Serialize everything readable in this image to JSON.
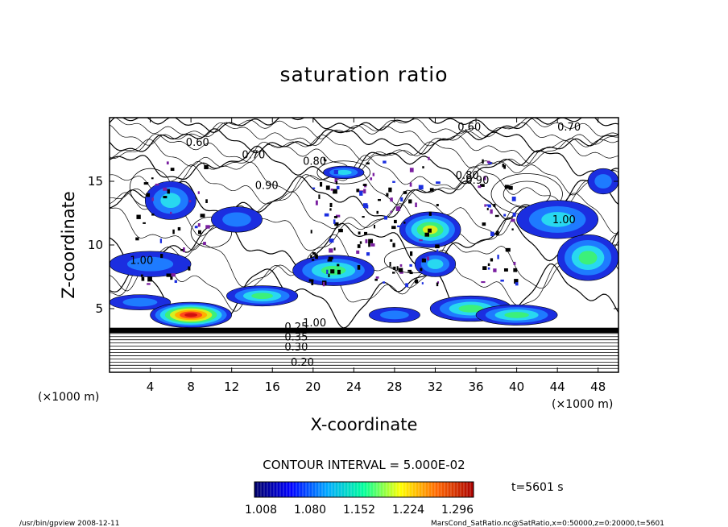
{
  "chart_data": {
    "type": "heatmap",
    "title": "saturation ratio",
    "xlabel": "X-coordinate",
    "ylabel": "Z-coordinate",
    "x_unit": "(×1000 m)",
    "y_unit": "(×1000 m)",
    "xlim": [
      0,
      50
    ],
    "ylim": [
      0,
      20
    ],
    "x_ticks": [
      4,
      8,
      12,
      16,
      20,
      24,
      28,
      32,
      36,
      40,
      44,
      48
    ],
    "y_ticks": [
      5,
      10,
      15
    ],
    "contour_interval_text": "CONTOUR INTERVAL = 5.000E-02",
    "time_text": "t=5601 s",
    "colorbar": {
      "ticks": [
        "1.008",
        "1.080",
        "1.152",
        "1.224",
        "1.296"
      ],
      "colors": [
        "#000066",
        "#0000ff",
        "#00aaff",
        "#00ff99",
        "#ffff00",
        "#ff6600",
        "#aa0000"
      ]
    },
    "contour_labels": [
      {
        "text": "0.60",
        "x": 7.5,
        "z": 17.8
      },
      {
        "text": "0.70",
        "x": 13.0,
        "z": 16.8
      },
      {
        "text": "0.80",
        "x": 19.0,
        "z": 16.3
      },
      {
        "text": "0.90",
        "x": 14.3,
        "z": 14.4
      },
      {
        "text": "0.60",
        "x": 34.2,
        "z": 19.0
      },
      {
        "text": "0.70",
        "x": 44.0,
        "z": 19.0
      },
      {
        "text": "0.80",
        "x": 34.0,
        "z": 15.2
      },
      {
        "text": "0.90",
        "x": 35.0,
        "z": 14.8
      },
      {
        "text": "1.00",
        "x": 43.5,
        "z": 11.7
      },
      {
        "text": "1.00",
        "x": 2.0,
        "z": 8.5
      },
      {
        "text": "1.00",
        "x": 19.0,
        "z": 3.6
      },
      {
        "text": "0.25",
        "x": 17.2,
        "z": 3.3
      },
      {
        "text": "0.35",
        "x": 17.2,
        "z": 2.5
      },
      {
        "text": "0.30",
        "x": 17.2,
        "z": 1.7
      },
      {
        "text": "0.20",
        "x": 17.8,
        "z": 0.5
      }
    ],
    "supersaturated_regions": [
      {
        "x": 23.0,
        "z": 15.7,
        "rx": 2.0,
        "rz": 0.5,
        "peak": 1.1
      },
      {
        "x": 6.0,
        "z": 13.5,
        "rx": 2.5,
        "rz": 1.5,
        "peak": 1.08
      },
      {
        "x": 4.0,
        "z": 8.5,
        "rx": 4.0,
        "rz": 1.0,
        "peak": 1.05
      },
      {
        "x": 3.0,
        "z": 5.5,
        "rx": 3.0,
        "rz": 0.6,
        "peak": 1.06
      },
      {
        "x": 8.0,
        "z": 4.5,
        "rx": 4.0,
        "rz": 1.0,
        "peak": 1.296
      },
      {
        "x": 15.0,
        "z": 6.0,
        "rx": 3.5,
        "rz": 0.8,
        "peak": 1.15
      },
      {
        "x": 22.0,
        "z": 8.0,
        "rx": 4.0,
        "rz": 1.2,
        "peak": 1.12
      },
      {
        "x": 31.5,
        "z": 11.2,
        "rx": 3.0,
        "rz": 1.4,
        "peak": 1.2
      },
      {
        "x": 32.0,
        "z": 8.5,
        "rx": 2.0,
        "rz": 1.0,
        "peak": 1.08
      },
      {
        "x": 35.5,
        "z": 5.0,
        "rx": 4.0,
        "rz": 1.0,
        "peak": 1.14
      },
      {
        "x": 44.0,
        "z": 12.0,
        "rx": 4.0,
        "rz": 1.5,
        "peak": 1.1
      },
      {
        "x": 47.0,
        "z": 9.0,
        "rx": 3.0,
        "rz": 1.8,
        "peak": 1.12
      },
      {
        "x": 48.5,
        "z": 15.0,
        "rx": 1.5,
        "rz": 1.0,
        "peak": 1.06
      },
      {
        "x": 40.0,
        "z": 4.5,
        "rx": 4.0,
        "rz": 0.8,
        "peak": 1.16
      },
      {
        "x": 12.5,
        "z": 12.0,
        "rx": 2.5,
        "rz": 1.0,
        "peak": 1.05
      },
      {
        "x": 28.0,
        "z": 4.5,
        "rx": 2.5,
        "rz": 0.6,
        "peak": 1.06
      }
    ]
  },
  "footer": {
    "program": "/usr/bin/gpview  2008-12-11",
    "source": "MarsCond_SatRatio.nc@SatRatio,x=0:50000,z=0:20000,t=5601"
  }
}
